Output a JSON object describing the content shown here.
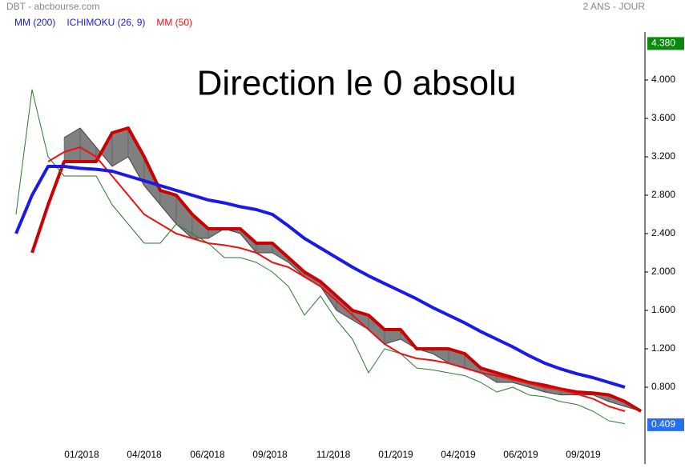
{
  "chart_data": {
    "type": "line",
    "source": "DBT - abcbourse.com",
    "period": "2 ANS - JOUR",
    "annotation": "Direction le 0 absolu",
    "x": [
      0,
      1,
      2,
      3,
      4,
      5,
      6,
      7,
      8,
      9,
      10,
      11,
      12,
      13,
      14,
      15,
      16,
      17,
      18,
      19,
      20,
      21,
      22,
      23,
      24,
      25,
      26,
      27,
      28,
      29,
      30,
      31,
      32,
      33,
      34,
      35,
      36,
      37,
      38,
      39
    ],
    "xlim": [
      -0.75,
      39.25
    ],
    "xticks": [
      {
        "value": 4.1,
        "label": "01/2018"
      },
      {
        "value": 8,
        "label": "04/2018"
      },
      {
        "value": 11.95,
        "label": "06/2018"
      },
      {
        "value": 15.85,
        "label": "09/2018"
      },
      {
        "value": 19.8,
        "label": "11/2018"
      },
      {
        "value": 23.7,
        "label": "01/2019"
      },
      {
        "value": 27.6,
        "label": "04/2019"
      },
      {
        "value": 31.5,
        "label": "06/2019"
      },
      {
        "value": 35.4,
        "label": "09/2019"
      }
    ],
    "ylim": [
      0.05,
      4.45
    ],
    "yticks": [
      {
        "value": 0.8,
        "label": "0.800"
      },
      {
        "value": 1.2,
        "label": "1.200"
      },
      {
        "value": 1.6,
        "label": "1.600"
      },
      {
        "value": 2,
        "label": "2.000"
      },
      {
        "value": 2.4,
        "label": "2.400"
      },
      {
        "value": 2.8,
        "label": "2.800"
      },
      {
        "value": 3.2,
        "label": "3.200"
      },
      {
        "value": 3.6,
        "label": "3.600"
      },
      {
        "value": 4,
        "label": "4.000"
      }
    ],
    "series": [
      {
        "name": "MM (200)",
        "color": "#1a1ae6",
        "width": 4,
        "values": [
          2.4,
          2.8,
          3.1,
          3.1,
          3.08,
          3.07,
          3.05,
          3.0,
          2.95,
          2.9,
          2.85,
          2.8,
          2.75,
          2.72,
          2.68,
          2.65,
          2.6,
          2.48,
          2.35,
          2.25,
          2.15,
          2.05,
          1.96,
          1.88,
          1.8,
          1.72,
          1.63,
          1.55,
          1.47,
          1.38,
          1.3,
          1.22,
          1.13,
          1.05,
          0.99,
          0.94,
          0.9,
          0.85,
          0.8,
          null
        ]
      },
      {
        "name": "ICHIMOKU (26, 9)",
        "color": "#1a1ae6",
        "label_color": "#1a1ae6",
        "cloud_color": "#808080",
        "span_a": [
          null,
          null,
          null,
          3.4,
          3.5,
          3.3,
          3.1,
          3.2,
          2.9,
          2.7,
          2.5,
          2.35,
          2.35,
          2.45,
          2.4,
          2.2,
          2.2,
          2.1,
          1.95,
          1.85,
          1.6,
          1.5,
          1.4,
          1.25,
          1.3,
          1.2,
          1.15,
          1.05,
          1.0,
          0.95,
          0.85,
          0.85,
          0.8,
          0.75,
          0.72,
          0.72,
          0.72,
          0.65,
          0.6,
          0.55
        ],
        "span_b_color": "#cc0000",
        "values": [
          null,
          2.2,
          2.7,
          3.15,
          3.15,
          3.15,
          3.45,
          3.5,
          3.2,
          2.85,
          2.8,
          2.6,
          2.45,
          2.45,
          2.45,
          2.3,
          2.3,
          2.15,
          2.0,
          1.9,
          1.75,
          1.6,
          1.55,
          1.4,
          1.4,
          1.2,
          1.2,
          1.2,
          1.15,
          1.0,
          0.95,
          0.9,
          0.85,
          0.82,
          0.78,
          0.75,
          0.74,
          0.72,
          0.65,
          0.55
        ]
      },
      {
        "name": "MM (50)",
        "color": "#ee1111",
        "width": 2,
        "values": [
          null,
          null,
          3.15,
          3.25,
          3.3,
          3.2,
          3.0,
          2.8,
          2.6,
          2.5,
          2.4,
          2.35,
          2.3,
          2.28,
          2.25,
          2.2,
          2.1,
          2.05,
          1.95,
          1.85,
          1.7,
          1.55,
          1.4,
          1.25,
          1.15,
          1.1,
          1.08,
          1.05,
          1.0,
          0.95,
          0.92,
          0.88,
          0.84,
          0.8,
          0.77,
          0.73,
          0.68,
          0.6,
          0.55,
          null
        ]
      },
      {
        "name": "DBT",
        "color": "#2a7a2a",
        "width": 1,
        "values": [
          2.6,
          3.9,
          3.2,
          3.0,
          3.0,
          3.0,
          2.7,
          2.5,
          2.3,
          2.3,
          2.5,
          2.4,
          2.3,
          2.15,
          2.15,
          2.1,
          2.0,
          1.85,
          1.55,
          1.75,
          1.5,
          1.3,
          0.95,
          1.2,
          1.15,
          1.0,
          0.98,
          0.95,
          0.92,
          0.85,
          0.75,
          0.8,
          0.72,
          0.7,
          0.65,
          0.62,
          0.55,
          0.45,
          0.42,
          null
        ]
      }
    ],
    "high_label": {
      "value": 4.38,
      "label": "4.380",
      "color": "#0a8a0a"
    },
    "last_label": {
      "value": 0.409,
      "label": "0.409",
      "color": "#2a6ef0"
    }
  }
}
